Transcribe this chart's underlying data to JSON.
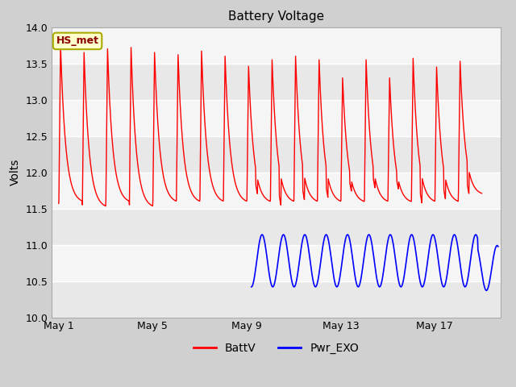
{
  "title": "Battery Voltage",
  "ylabel": "Volts",
  "ylim": [
    10.0,
    14.0
  ],
  "yticks": [
    10.0,
    10.5,
    11.0,
    11.5,
    12.0,
    12.5,
    13.0,
    13.5,
    14.0
  ],
  "xlabel_ticks": [
    "May 1",
    "May 5",
    "May 9",
    "May 13",
    "May 17"
  ],
  "xlabel_tick_positions": [
    0,
    4,
    8,
    12,
    16
  ],
  "xlim": [
    -0.3,
    18.8
  ],
  "fig_bg": "#d0d0d0",
  "band_colors": [
    "#e8e8e8",
    "#f5f5f5"
  ],
  "grid_color": "#ffffff",
  "legend_label1": "BattV",
  "legend_label2": "Pwr_EXO",
  "legend_color1": "red",
  "legend_color2": "blue",
  "annotation_text": "HS_met",
  "annotation_bg": "#ffffcc",
  "annotation_border": "#aaaa00",
  "title_fontsize": 11,
  "axis_fontsize": 9,
  "ylabel_fontsize": 10
}
